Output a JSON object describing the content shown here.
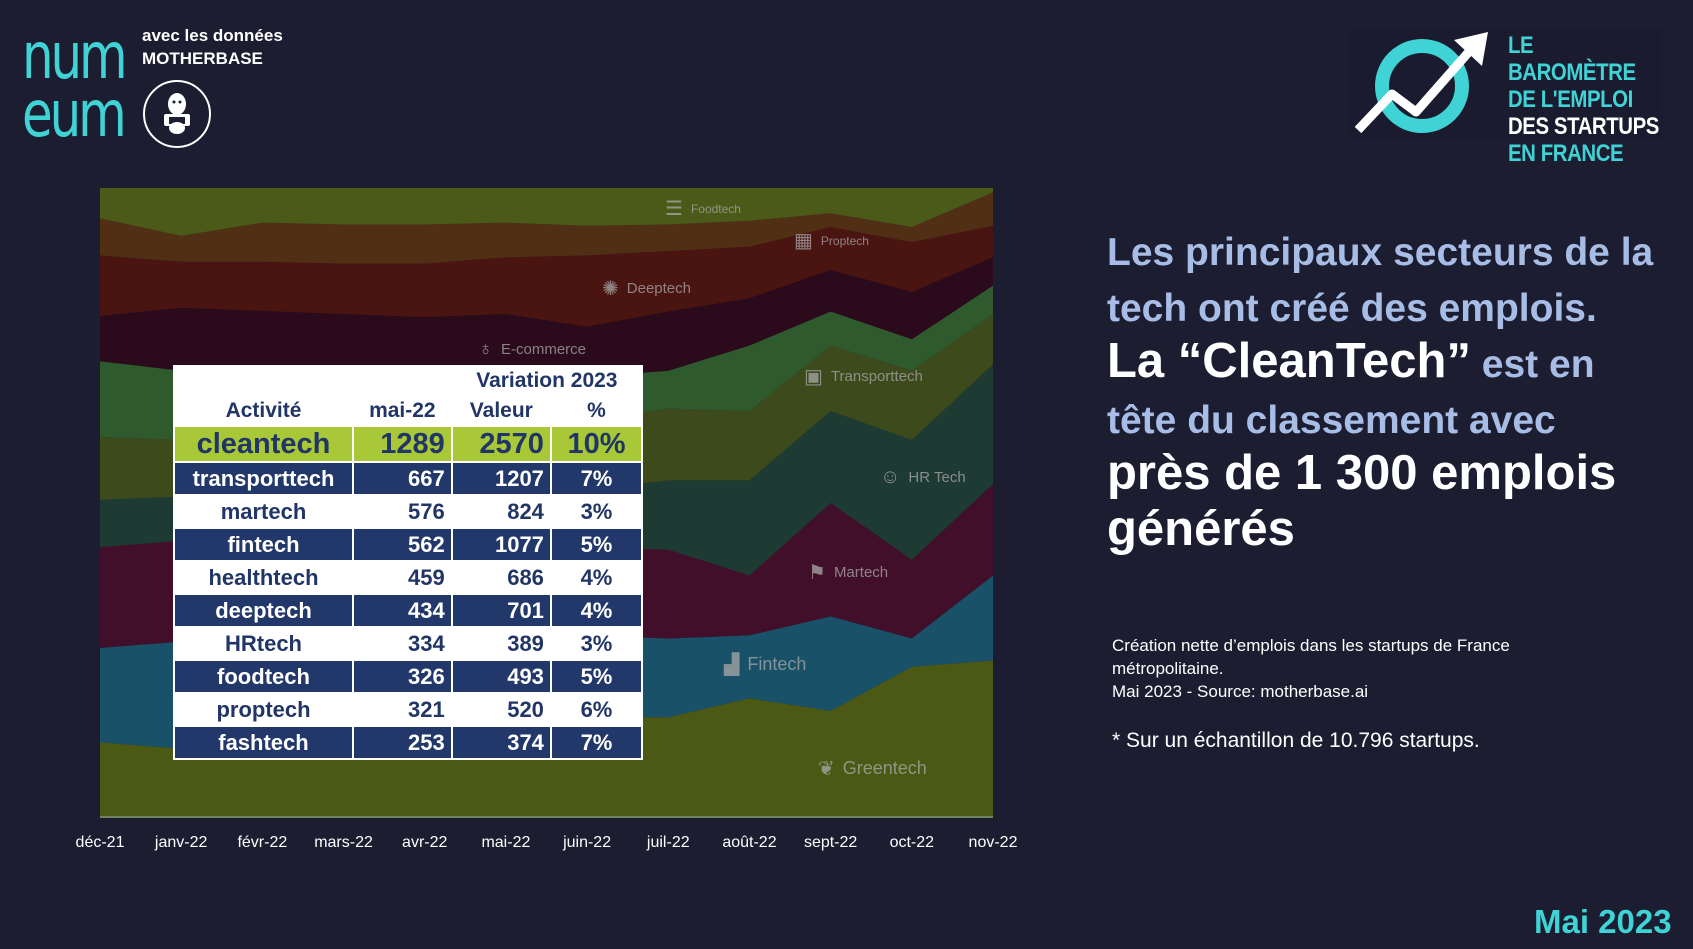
{
  "brand": {
    "logo_lines": [
      "num",
      "eum"
    ],
    "partner_line1": "avec les données",
    "partner_line2": "MOTHERBASE"
  },
  "barometre": {
    "lines": [
      "LE BAROMÈTRE",
      "DE L'EMPLOI",
      "DES STARTUPS",
      "EN FRANCE"
    ]
  },
  "chart_data": {
    "type": "area",
    "stacked": "percent",
    "x": [
      "déc-21",
      "janv-22",
      "févr-22",
      "mars-22",
      "avr-22",
      "mai-22",
      "juin-22",
      "juil-22",
      "août-22",
      "sept-22",
      "oct-22",
      "nov-22"
    ],
    "ylim": [
      0,
      100
    ],
    "series": [
      {
        "name": "Greentech",
        "color": "#4b5914",
        "top": [
          12,
          11,
          13,
          14,
          15,
          16,
          16,
          16,
          19,
          17,
          24,
          25
        ]
      },
      {
        "name": "Fintech",
        "color": "#195168",
        "top": [
          27,
          28,
          29,
          29,
          29,
          29,
          29,
          28.5,
          29,
          32,
          28.5,
          38.5
        ]
      },
      {
        "name": "Martech",
        "color": "#420f2a",
        "top": [
          43,
          44,
          44,
          43,
          43,
          43,
          43,
          42.6,
          38.5,
          50,
          41,
          53
        ]
      },
      {
        "name": "HR Tech",
        "color": "#1d3a33",
        "top": [
          50.5,
          51,
          52,
          52,
          52,
          52,
          52,
          53.6,
          53.6,
          64.6,
          60,
          72
        ]
      },
      {
        "name": "Transporttech",
        "color": "#3c4a1c",
        "top": [
          60.5,
          60,
          61,
          61,
          61,
          62,
          63,
          65,
          64.6,
          75,
          71,
          80
        ]
      },
      {
        "name": "",
        "color": "#2f5a2e",
        "top": [
          72.5,
          71,
          71,
          70,
          70,
          70,
          70,
          71,
          75,
          80.4,
          76,
          84.5
        ]
      },
      {
        "name": "E-commerce",
        "color": "#2b0a1b",
        "top": [
          79.7,
          81,
          80.5,
          80,
          79.5,
          80,
          78,
          80.4,
          82.5,
          87,
          83.5,
          89
        ]
      },
      {
        "name": "Deeptech",
        "color": "#4a1411",
        "top": [
          89.3,
          88.3,
          88.3,
          88,
          88,
          89,
          89.3,
          90,
          90.7,
          93.8,
          91.4,
          94
        ]
      },
      {
        "name": "Proptech",
        "color": "#512f15",
        "top": [
          95.2,
          92.4,
          94.5,
          94.2,
          94.2,
          94.5,
          94,
          94.2,
          94.8,
          96,
          93.8,
          99.3
        ]
      },
      {
        "name": "Foodtech",
        "color": "#4b5a19",
        "top": [
          100,
          100,
          100,
          100,
          100,
          100,
          100,
          100,
          100,
          100,
          100,
          100
        ]
      }
    ]
  },
  "table": {
    "header_variation": "Variation 2023",
    "col_activite": "Activité",
    "col_mai": "mai-22",
    "col_valeur": "Valeur",
    "col_pct": "%",
    "rows": [
      {
        "name": "cleantech",
        "mai": "1289",
        "valeur": "2570",
        "pct": "10%"
      },
      {
        "name": "transporttech",
        "mai": "667",
        "valeur": "1207",
        "pct": "7%"
      },
      {
        "name": "martech",
        "mai": "576",
        "valeur": "824",
        "pct": "3%"
      },
      {
        "name": "fintech",
        "mai": "562",
        "valeur": "1077",
        "pct": "5%"
      },
      {
        "name": "healthtech",
        "mai": "459",
        "valeur": "686",
        "pct": "4%"
      },
      {
        "name": "deeptech",
        "mai": "434",
        "valeur": "701",
        "pct": "4%"
      },
      {
        "name": "HRtech",
        "mai": "334",
        "valeur": "389",
        "pct": "3%"
      },
      {
        "name": "foodtech",
        "mai": "326",
        "valeur": "493",
        "pct": "5%"
      },
      {
        "name": "proptech",
        "mai": "321",
        "valeur": "520",
        "pct": "6%"
      },
      {
        "name": "fashtech",
        "mai": "253",
        "valeur": "374",
        "pct": "7%"
      }
    ]
  },
  "headline": {
    "p1": "Les principaux secteurs de la tech ont créé des emplois.",
    "p2": " La “CleanTech”",
    "p3": " est en tête du classement avec",
    "p4": " près de 1 300 emplois générés"
  },
  "note": {
    "line1": "Création nette d’emplois dans les startups de France",
    "line2": "métropolitaine.",
    "line3": "Mai 2023 - Source: motherbase.ai"
  },
  "footnote": "* Sur un échantillon de 10.796 startups.",
  "date": "Mai 2023"
}
